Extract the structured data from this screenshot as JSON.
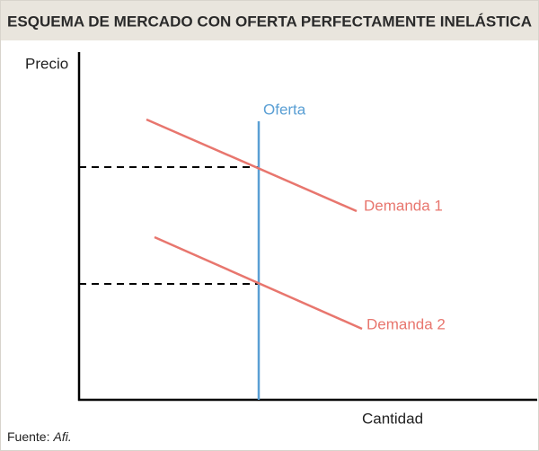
{
  "header": {
    "title": "ESQUEMA DE MERCADO CON OFERTA PERFECTAMENTE INELÁSTICA"
  },
  "axes": {
    "y_label": "Precio",
    "x_label": "Cantidad"
  },
  "curves": [
    {
      "label": "Oferta"
    },
    {
      "label": "Demanda 1"
    },
    {
      "label": "Demanda 2"
    }
  ],
  "source": {
    "label": "Fuente:",
    "name": "Afi."
  }
}
